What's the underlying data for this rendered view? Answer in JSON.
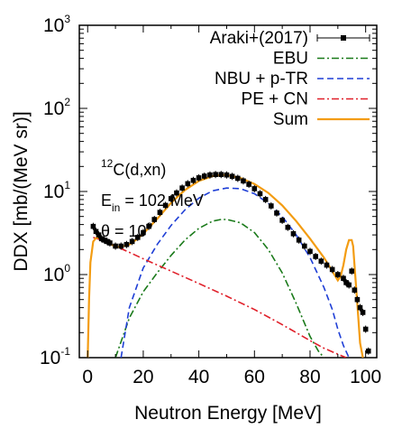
{
  "chart_data": {
    "type": "line",
    "xlabel": "Neutron Energy [MeV]",
    "ylabel": "DDX [mb/(MeV sr)]",
    "xlim": [
      -3,
      104
    ],
    "ylim_log10": [
      -1,
      3
    ],
    "yscale": "log",
    "x_ticks": [
      0,
      20,
      40,
      60,
      80,
      100
    ],
    "y_ticks": [
      {
        "base": "10",
        "exp": "3",
        "value": 1000
      },
      {
        "base": "10",
        "exp": "2",
        "value": 100
      },
      {
        "base": "10",
        "exp": "1",
        "value": 10
      },
      {
        "base": "10",
        "exp": "0",
        "value": 1
      },
      {
        "base": "10",
        "exp": "-1",
        "value": 0.1
      }
    ],
    "legend_position": "top-right",
    "annotations": {
      "reaction_sup": "12",
      "reaction_rest": "C(d,xn)",
      "energy_main": "E",
      "energy_sub": "in",
      "energy_rest": " = 102 MeV",
      "theta": "θ   = 10",
      "theta_sup": "o"
    },
    "series": [
      {
        "name": "Araki+(2017)",
        "style": "points",
        "color": "#000000",
        "x": [
          2,
          3,
          4,
          5,
          6,
          7,
          8,
          10,
          12,
          14,
          16,
          18,
          20,
          22,
          24,
          26,
          28,
          30,
          32,
          34,
          36,
          38,
          40,
          42,
          44,
          46,
          48,
          50,
          52,
          54,
          56,
          58,
          60,
          62,
          64,
          66,
          68,
          70,
          72,
          74,
          76,
          78,
          80,
          82,
          84,
          86,
          88,
          90,
          92,
          93,
          94,
          95,
          96,
          97,
          98,
          99,
          100,
          101
        ],
        "y": [
          3.8,
          3.3,
          3.0,
          2.7,
          2.6,
          2.5,
          2.4,
          2.2,
          2.2,
          2.3,
          2.5,
          2.8,
          3.2,
          3.8,
          4.6,
          5.6,
          6.8,
          8.2,
          9.6,
          11.0,
          12.4,
          13.6,
          14.6,
          15.3,
          15.8,
          16.0,
          16.0,
          15.8,
          15.2,
          14.4,
          13.4,
          12.2,
          10.8,
          9.4,
          8.0,
          6.7,
          5.5,
          4.5,
          3.7,
          3.1,
          2.6,
          2.2,
          1.9,
          1.65,
          1.45,
          1.3,
          1.15,
          1.0,
          0.9,
          0.8,
          0.75,
          1.1,
          0.65,
          0.5,
          0.4,
          0.35,
          0.22,
          0.12
        ]
      },
      {
        "name": "EBU",
        "style": "dash-dot",
        "color": "#1a7a1a",
        "x": [
          10,
          15,
          20,
          25,
          30,
          35,
          40,
          45,
          48,
          50,
          55,
          60,
          65,
          70,
          75,
          80,
          83,
          85
        ],
        "y": [
          0.1,
          0.3,
          0.62,
          1.05,
          1.7,
          2.6,
          3.6,
          4.4,
          4.6,
          4.6,
          4.2,
          3.2,
          2.0,
          1.05,
          0.45,
          0.18,
          0.12,
          0.1
        ]
      },
      {
        "name": "NBU + p-TR",
        "style": "dashed",
        "color": "#1f3fd6",
        "x": [
          12,
          15,
          20,
          25,
          30,
          35,
          40,
          45,
          50,
          55,
          60,
          65,
          70,
          75,
          80,
          85,
          88,
          90,
          92,
          94
        ],
        "y": [
          0.1,
          0.4,
          1.2,
          2.3,
          3.9,
          6.0,
          8.3,
          10.2,
          11.0,
          10.8,
          9.4,
          7.2,
          5.0,
          3.0,
          1.6,
          0.7,
          0.38,
          0.22,
          0.14,
          0.1
        ]
      },
      {
        "name": "PE + CN",
        "style": "dash-dot",
        "color": "#e0202a",
        "x": [
          2,
          5,
          10,
          15,
          20,
          30,
          40,
          50,
          60,
          70,
          75,
          80,
          85,
          90,
          93
        ],
        "y": [
          2.8,
          2.6,
          2.2,
          1.85,
          1.55,
          1.1,
          0.78,
          0.55,
          0.38,
          0.25,
          0.2,
          0.16,
          0.13,
          0.11,
          0.1
        ]
      },
      {
        "name": "Sum",
        "style": "solid",
        "color": "#f39c12",
        "x": [
          0,
          0.5,
          1,
          2,
          3,
          4,
          5,
          7,
          9,
          11,
          13,
          15,
          18,
          20,
          25,
          30,
          35,
          40,
          45,
          48,
          50,
          55,
          60,
          65,
          70,
          75,
          80,
          85,
          88,
          90,
          91,
          92,
          93,
          94,
          95,
          95.5,
          96,
          97,
          98,
          99
        ],
        "y": [
          0.1,
          0.5,
          1.4,
          2.5,
          2.75,
          2.8,
          2.75,
          2.45,
          2.25,
          2.15,
          2.2,
          2.3,
          2.7,
          3.1,
          4.7,
          7.3,
          10.4,
          13.4,
          15.3,
          15.8,
          15.8,
          14.5,
          12.3,
          9.6,
          6.8,
          4.4,
          2.7,
          1.6,
          1.1,
          0.85,
          0.95,
          1.3,
          2.0,
          2.6,
          2.6,
          2.2,
          1.3,
          0.45,
          0.15,
          0.1
        ]
      }
    ]
  }
}
